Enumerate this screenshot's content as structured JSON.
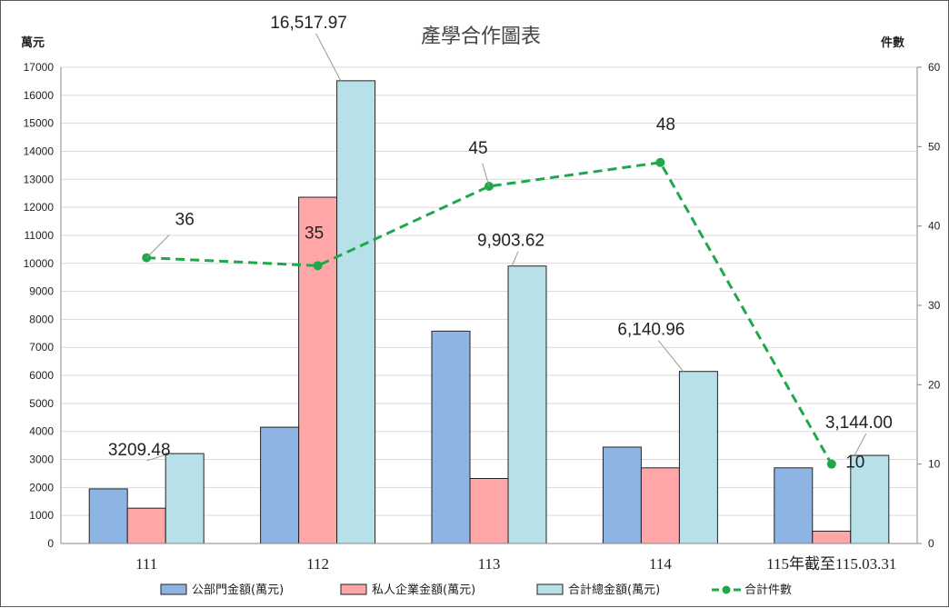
{
  "chart_data": {
    "type": "bar",
    "title": "產學合作圖表",
    "ylabel_left": "萬元",
    "ylabel_right": "件數",
    "categories": [
      "111",
      "112",
      "113",
      "114",
      "115年截至115.03.31"
    ],
    "ylim_left": [
      0,
      17000
    ],
    "yticks_left": [
      "0",
      "1000",
      "2000",
      "3000",
      "4000",
      "5000",
      "6000",
      "7000",
      "8000",
      "9000",
      "10000",
      "11000",
      "12000",
      "13000",
      "14000",
      "15000",
      "16000",
      "17000"
    ],
    "ylim_right": [
      0,
      60
    ],
    "yticks_right": [
      "0",
      "10",
      "20",
      "30",
      "40",
      "50",
      "60"
    ],
    "grid": true,
    "legend_position": "bottom",
    "series": [
      {
        "name": "公部門金額(萬元)",
        "type": "bar",
        "axis": "left",
        "color": "#8eb4e3",
        "values": [
          1950,
          4150,
          7580,
          3440,
          2700
        ]
      },
      {
        "name": "私人企業金額(萬元)",
        "type": "bar",
        "axis": "left",
        "color": "#ffa6a8",
        "values": [
          1260,
          12360,
          2320,
          2700,
          440
        ]
      },
      {
        "name": "合計總金額(萬元)",
        "type": "bar",
        "axis": "left",
        "color": "#b8e0e8",
        "values": [
          3209.48,
          16517.97,
          9903.62,
          6140.96,
          3144.0
        ],
        "labels": [
          "3209.48",
          "16,517.97",
          "9,903.62",
          "6,140.96",
          "3,144.00"
        ]
      },
      {
        "name": "合計件數",
        "type": "line",
        "axis": "right",
        "color": "#1fa84a",
        "values": [
          36,
          35,
          45,
          48,
          10
        ],
        "labels": [
          "36",
          "35",
          "45",
          "48",
          "10"
        ]
      }
    ]
  }
}
